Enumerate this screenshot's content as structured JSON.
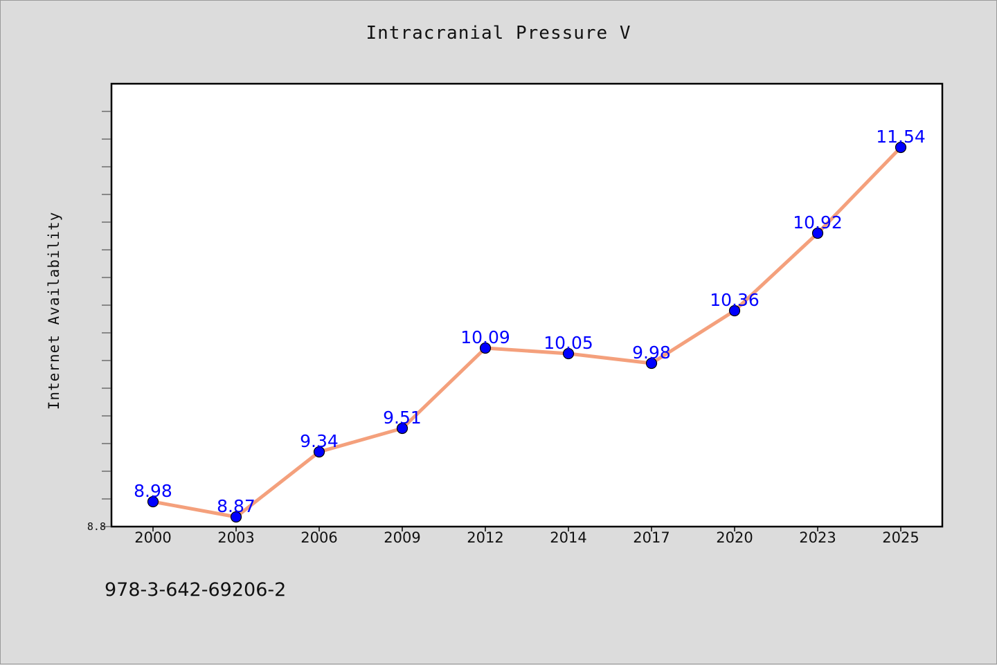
{
  "colors": {
    "background": "#dcdcdc",
    "plot_background": "#ffffff",
    "line": "#f4a07c",
    "marker": "#0000ff",
    "data_label": "#0000ff",
    "axes": "#000000"
  },
  "footer": {
    "code": "978-3-642-69206-2"
  },
  "chart_data": {
    "type": "line",
    "title": "Intracranial Pressure V",
    "xlabel": "",
    "ylabel": "Internet Availability",
    "categories": [
      "2000",
      "2003",
      "2006",
      "2009",
      "2012",
      "2014",
      "2017",
      "2020",
      "2023",
      "2025"
    ],
    "values": [
      8.98,
      8.87,
      9.34,
      9.51,
      10.09,
      10.05,
      9.98,
      10.36,
      10.92,
      11.54
    ],
    "data_labels": [
      "8.98",
      "8.87",
      "9.34",
      "9.51",
      "10.09",
      "10.05",
      "9.98",
      "10.36",
      "10.92",
      "11.54"
    ],
    "y_tick_labels": [
      "8.8"
    ],
    "ylim": [
      8.8,
      12.0
    ],
    "grid": false,
    "legend": "none"
  }
}
